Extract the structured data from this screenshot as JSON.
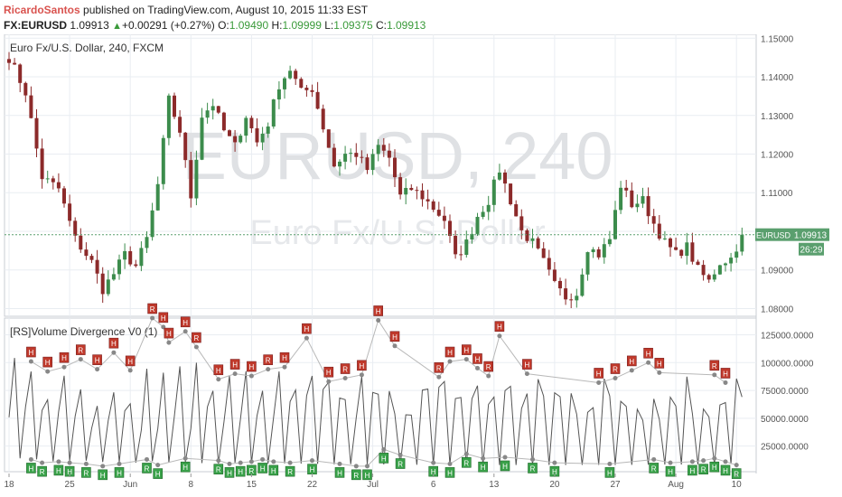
{
  "header": {
    "author": "RicardoSantos",
    "published_text": "published on TradingView.com, August 10, 2015 11:33 EST",
    "symbol": "FX:EURUSD",
    "last": "1.09913",
    "change": "+0.00291 (+0.27%)",
    "open_label": "O:",
    "open": "1.09490",
    "high_label": "H:",
    "high": "1.09999",
    "low_label": "L:",
    "low": "1.09375",
    "close_label": "C:",
    "close": "1.09913"
  },
  "main_pane": {
    "title": "Euro Fx/U.S. Dollar, 240, FXCM",
    "watermark_big": "EURUSD, 240",
    "watermark_small": "Euro Fx/U.S. Dollar",
    "price_tag_symbol": "EURUSD",
    "price_tag_value": "1.09913",
    "countdown": "26:29"
  },
  "indicator_pane": {
    "title": "[RS]Volume Divergence V0 (1)"
  },
  "colors": {
    "up": "#3c8c4c",
    "down": "#8c2a2a",
    "grid": "#e9edf2",
    "accent": "#5a9f6e",
    "high_marker": "#c0392b",
    "low_marker": "#3aa24a"
  },
  "chart_data": [
    {
      "type": "candlestick",
      "title": "Euro Fx/U.S. Dollar, 240, FXCM",
      "y_ticks": [
        "1.15000",
        "1.14000",
        "1.13000",
        "1.12000",
        "1.11000",
        "1.10000",
        "1.09000",
        "1.08000"
      ],
      "ylim": [
        1.078,
        1.151
      ],
      "x_ticks": [
        "18",
        "25",
        "Jun",
        "8",
        "15",
        "22",
        "Jul",
        "6",
        "13",
        "20",
        "27",
        "Aug",
        "10"
      ],
      "x_tick_index": [
        0,
        11,
        22,
        33,
        44,
        55,
        66,
        77,
        88,
        99,
        110,
        121,
        132
      ],
      "n_bars": 134,
      "last_price": 1.09913,
      "close_path": [
        [
          0,
          1.145
        ],
        [
          3,
          1.136
        ],
        [
          6,
          1.114
        ],
        [
          9,
          1.111
        ],
        [
          12,
          1.098
        ],
        [
          15,
          1.092
        ],
        [
          17,
          1.085
        ],
        [
          19,
          1.089
        ],
        [
          21,
          1.094
        ],
        [
          23,
          1.091
        ],
        [
          25,
          1.098
        ],
        [
          27,
          1.112
        ],
        [
          29,
          1.134
        ],
        [
          31,
          1.126
        ],
        [
          33,
          1.109
        ],
        [
          35,
          1.13
        ],
        [
          37,
          1.133
        ],
        [
          39,
          1.126
        ],
        [
          41,
          1.122
        ],
        [
          43,
          1.13
        ],
        [
          45,
          1.123
        ],
        [
          47,
          1.128
        ],
        [
          49,
          1.138
        ],
        [
          51,
          1.142
        ],
        [
          53,
          1.136
        ],
        [
          55,
          1.137
        ],
        [
          57,
          1.127
        ],
        [
          59,
          1.117
        ],
        [
          61,
          1.12
        ],
        [
          63,
          1.12
        ],
        [
          65,
          1.116
        ],
        [
          67,
          1.122
        ],
        [
          69,
          1.119
        ],
        [
          71,
          1.109
        ],
        [
          73,
          1.111
        ],
        [
          75,
          1.109
        ],
        [
          77,
          1.106
        ],
        [
          79,
          1.103
        ],
        [
          81,
          1.093
        ],
        [
          83,
          1.097
        ],
        [
          85,
          1.104
        ],
        [
          87,
          1.108
        ],
        [
          89,
          1.116
        ],
        [
          91,
          1.108
        ],
        [
          93,
          1.1
        ],
        [
          95,
          1.097
        ],
        [
          97,
          1.092
        ],
        [
          99,
          1.086
        ],
        [
          101,
          1.083
        ],
        [
          103,
          1.084
        ],
        [
          105,
          1.096
        ],
        [
          107,
          1.094
        ],
        [
          109,
          1.098
        ],
        [
          111,
          1.112
        ],
        [
          113,
          1.107
        ],
        [
          115,
          1.108
        ],
        [
          117,
          1.102
        ],
        [
          119,
          1.097
        ],
        [
          121,
          1.094
        ],
        [
          123,
          1.096
        ],
        [
          125,
          1.09
        ],
        [
          127,
          1.087
        ],
        [
          129,
          1.092
        ],
        [
          131,
          1.093
        ],
        [
          133,
          1.099
        ]
      ]
    },
    {
      "type": "line",
      "title": "[RS]Volume Divergence V0 (1)",
      "y_ticks": [
        "125000.0000",
        "100000.0000",
        "75000.0000",
        "50000.0000",
        "25000.0000"
      ],
      "ylim": [
        2000,
        140000
      ],
      "x_ticks": [
        "18",
        "25",
        "Jun",
        "8",
        "15",
        "22",
        "Jul",
        "6",
        "13",
        "20",
        "27",
        "Aug",
        "10"
      ],
      "high_pivots": [
        [
          4,
          101000
        ],
        [
          7,
          92000
        ],
        [
          10,
          96000
        ],
        [
          13,
          103000
        ],
        [
          16,
          94000
        ],
        [
          19,
          109000
        ],
        [
          22,
          93000
        ],
        [
          26,
          140000
        ],
        [
          28,
          132000
        ],
        [
          29,
          118000
        ],
        [
          32,
          128000
        ],
        [
          34,
          114000
        ],
        [
          38,
          85000
        ],
        [
          41,
          90000
        ],
        [
          44,
          88000
        ],
        [
          47,
          94000
        ],
        [
          50,
          96000
        ],
        [
          54,
          122000
        ],
        [
          58,
          83000
        ],
        [
          61,
          86000
        ],
        [
          64,
          89000
        ],
        [
          67,
          138000
        ],
        [
          70,
          115000
        ],
        [
          78,
          87000
        ],
        [
          80,
          101000
        ],
        [
          83,
          103000
        ],
        [
          85,
          95000
        ],
        [
          87,
          88000
        ],
        [
          89,
          124000
        ],
        [
          94,
          90000
        ],
        [
          107,
          82000
        ],
        [
          110,
          86000
        ],
        [
          113,
          93000
        ],
        [
          116,
          100000
        ],
        [
          118,
          91000
        ],
        [
          128,
          89000
        ],
        [
          130,
          82000
        ]
      ],
      "low_pivots": [
        [
          4,
          13000
        ],
        [
          6,
          10000
        ],
        [
          9,
          11000
        ],
        [
          11,
          10000
        ],
        [
          14,
          9000
        ],
        [
          17,
          7000
        ],
        [
          20,
          9000
        ],
        [
          25,
          13000
        ],
        [
          27,
          8000
        ],
        [
          32,
          14000
        ],
        [
          38,
          12000
        ],
        [
          40,
          9000
        ],
        [
          42,
          10000
        ],
        [
          44,
          11000
        ],
        [
          46,
          13000
        ],
        [
          48,
          11000
        ],
        [
          51,
          10000
        ],
        [
          55,
          12000
        ],
        [
          60,
          9000
        ],
        [
          63,
          7000
        ],
        [
          65,
          7000
        ],
        [
          68,
          22000
        ],
        [
          71,
          17000
        ],
        [
          77,
          10000
        ],
        [
          80,
          9000
        ],
        [
          83,
          18000
        ],
        [
          86,
          14000
        ],
        [
          90,
          15000
        ],
        [
          95,
          13000
        ],
        [
          99,
          10000
        ],
        [
          109,
          9000
        ],
        [
          117,
          13000
        ],
        [
          120,
          10000
        ],
        [
          124,
          11000
        ],
        [
          126,
          12000
        ],
        [
          128,
          14000
        ],
        [
          130,
          11000
        ],
        [
          132,
          8000
        ]
      ]
    }
  ]
}
